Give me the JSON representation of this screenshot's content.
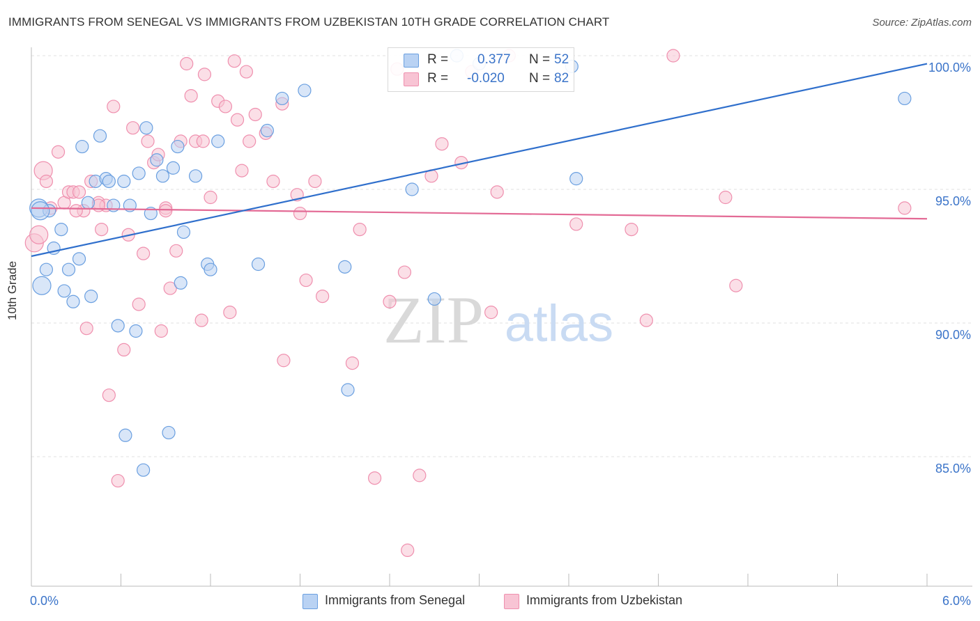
{
  "title": "IMMIGRANTS FROM SENEGAL VS IMMIGRANTS FROM UZBEKISTAN 10TH GRADE CORRELATION CHART",
  "source": "Source: ZipAtlas.com",
  "watermark": {
    "zip": "ZIP",
    "atlas": "atlas"
  },
  "colors": {
    "blue": "#6a9fe0",
    "blue_line": "#2f6fcc",
    "pink": "#ef8fae",
    "pink_line": "#e36a95",
    "blue_fill": "#b9d2f3",
    "pink_fill": "#f8c4d4",
    "axis_text": "#3b74c9"
  },
  "legend": {
    "senegal": {
      "r_label": "R =",
      "r_value": "0.377",
      "n_label": "N =",
      "n_value": "52"
    },
    "uzbekistan": {
      "r_label": "R =",
      "r_value": "-0.020",
      "n_label": "N =",
      "n_value": "82"
    }
  },
  "bottom_legend": {
    "senegal": "Immigrants from Senegal",
    "uzbekistan": "Immigrants from Uzbekistan"
  },
  "chart_data": {
    "type": "scatter",
    "title": "IMMIGRANTS FROM SENEGAL VS IMMIGRANTS FROM UZBEKISTAN 10TH GRADE CORRELATION CHART",
    "xlabel": "",
    "ylabel": "10th Grade",
    "xlim": [
      0,
      6
    ],
    "ylim": [
      80.0,
      100.5
    ],
    "x_tick_labels": [
      "0.0%",
      "6.0%"
    ],
    "y_ticks": [
      85,
      90,
      95,
      100
    ],
    "y_tick_labels": [
      "85.0%",
      "90.0%",
      "95.0%",
      "100.0%"
    ],
    "grid": true,
    "legend_position": "top-center",
    "series": [
      {
        "name": "Immigrants from Senegal",
        "color": "#6a9fe0",
        "trend": {
          "x": [
            0,
            6
          ],
          "y": [
            92.5,
            99.7
          ]
        },
        "points": [
          [
            0.05,
            94.3
          ],
          [
            0.07,
            91.4
          ],
          [
            0.1,
            92.0
          ],
          [
            0.12,
            94.2
          ],
          [
            0.15,
            92.8
          ],
          [
            0.2,
            93.5
          ],
          [
            0.22,
            91.2
          ],
          [
            0.25,
            92.0
          ],
          [
            0.28,
            90.8
          ],
          [
            0.32,
            92.4
          ],
          [
            0.34,
            96.6
          ],
          [
            0.38,
            94.5
          ],
          [
            0.4,
            91.0
          ],
          [
            0.43,
            95.3
          ],
          [
            0.46,
            97.0
          ],
          [
            0.5,
            95.4
          ],
          [
            0.52,
            95.3
          ],
          [
            0.55,
            94.4
          ],
          [
            0.58,
            89.9
          ],
          [
            0.62,
            95.3
          ],
          [
            0.63,
            85.8
          ],
          [
            0.66,
            94.4
          ],
          [
            0.7,
            89.7
          ],
          [
            0.72,
            95.6
          ],
          [
            0.75,
            84.5
          ],
          [
            0.77,
            97.3
          ],
          [
            0.8,
            94.1
          ],
          [
            0.84,
            96.1
          ],
          [
            0.88,
            95.5
          ],
          [
            0.92,
            85.9
          ],
          [
            0.95,
            95.8
          ],
          [
            0.98,
            96.6
          ],
          [
            1.0,
            91.5
          ],
          [
            1.02,
            93.4
          ],
          [
            1.1,
            95.5
          ],
          [
            1.18,
            92.2
          ],
          [
            1.2,
            92.0
          ],
          [
            1.25,
            96.8
          ],
          [
            1.52,
            92.2
          ],
          [
            1.58,
            97.2
          ],
          [
            1.68,
            98.4
          ],
          [
            1.83,
            98.7
          ],
          [
            2.1,
            92.1
          ],
          [
            2.12,
            87.5
          ],
          [
            2.55,
            95.0
          ],
          [
            2.7,
            90.9
          ],
          [
            2.85,
            100.0
          ],
          [
            3.62,
            99.6
          ],
          [
            3.65,
            95.4
          ],
          [
            5.85,
            98.4
          ],
          [
            3.0,
            99.7
          ],
          [
            0.06,
            94.2
          ]
        ]
      },
      {
        "name": "Immigrants from Uzbekistan",
        "color": "#ef8fae",
        "trend": {
          "x": [
            0,
            6
          ],
          "y": [
            94.3,
            93.9
          ]
        },
        "points": [
          [
            0.02,
            93.0
          ],
          [
            0.05,
            93.3
          ],
          [
            0.08,
            95.7
          ],
          [
            0.1,
            95.3
          ],
          [
            0.13,
            94.3
          ],
          [
            0.18,
            96.4
          ],
          [
            0.22,
            94.5
          ],
          [
            0.25,
            94.9
          ],
          [
            0.28,
            94.9
          ],
          [
            0.32,
            94.9
          ],
          [
            0.35,
            94.2
          ],
          [
            0.37,
            89.8
          ],
          [
            0.4,
            95.3
          ],
          [
            0.45,
            94.5
          ],
          [
            0.47,
            93.5
          ],
          [
            0.5,
            94.4
          ],
          [
            0.52,
            87.3
          ],
          [
            0.55,
            98.1
          ],
          [
            0.58,
            84.1
          ],
          [
            0.62,
            89.0
          ],
          [
            0.65,
            93.3
          ],
          [
            0.68,
            97.3
          ],
          [
            0.72,
            90.7
          ],
          [
            0.75,
            92.6
          ],
          [
            0.78,
            96.8
          ],
          [
            0.82,
            96.0
          ],
          [
            0.85,
            96.3
          ],
          [
            0.87,
            89.7
          ],
          [
            0.9,
            94.3
          ],
          [
            0.93,
            91.3
          ],
          [
            0.97,
            92.7
          ],
          [
            1.0,
            96.8
          ],
          [
            1.04,
            99.7
          ],
          [
            1.07,
            98.5
          ],
          [
            1.1,
            96.8
          ],
          [
            1.14,
            90.1
          ],
          [
            1.16,
            99.3
          ],
          [
            1.2,
            94.7
          ],
          [
            1.25,
            98.3
          ],
          [
            1.3,
            98.1
          ],
          [
            1.33,
            90.4
          ],
          [
            1.36,
            99.8
          ],
          [
            1.38,
            97.6
          ],
          [
            1.41,
            95.7
          ],
          [
            1.44,
            99.4
          ],
          [
            1.46,
            96.8
          ],
          [
            1.5,
            97.8
          ],
          [
            1.57,
            97.1
          ],
          [
            1.62,
            95.3
          ],
          [
            1.68,
            98.2
          ],
          [
            1.69,
            88.6
          ],
          [
            1.78,
            94.8
          ],
          [
            1.8,
            94.1
          ],
          [
            1.84,
            91.6
          ],
          [
            1.9,
            95.3
          ],
          [
            1.95,
            91.0
          ],
          [
            2.15,
            88.5
          ],
          [
            2.2,
            93.5
          ],
          [
            2.3,
            84.2
          ],
          [
            2.4,
            90.8
          ],
          [
            2.45,
            99.5
          ],
          [
            2.5,
            91.9
          ],
          [
            2.52,
            81.5
          ],
          [
            2.6,
            84.3
          ],
          [
            2.68,
            95.5
          ],
          [
            2.75,
            96.7
          ],
          [
            2.88,
            96.0
          ],
          [
            2.95,
            99.4
          ],
          [
            3.08,
            90.4
          ],
          [
            3.12,
            94.9
          ],
          [
            3.2,
            100.0
          ],
          [
            3.65,
            93.7
          ],
          [
            4.02,
            93.5
          ],
          [
            4.12,
            90.1
          ],
          [
            4.3,
            100.0
          ],
          [
            4.65,
            94.7
          ],
          [
            4.72,
            91.4
          ],
          [
            5.85,
            94.3
          ],
          [
            0.3,
            94.2
          ],
          [
            0.45,
            94.4
          ],
          [
            0.9,
            94.2
          ],
          [
            1.15,
            96.8
          ]
        ]
      }
    ]
  }
}
